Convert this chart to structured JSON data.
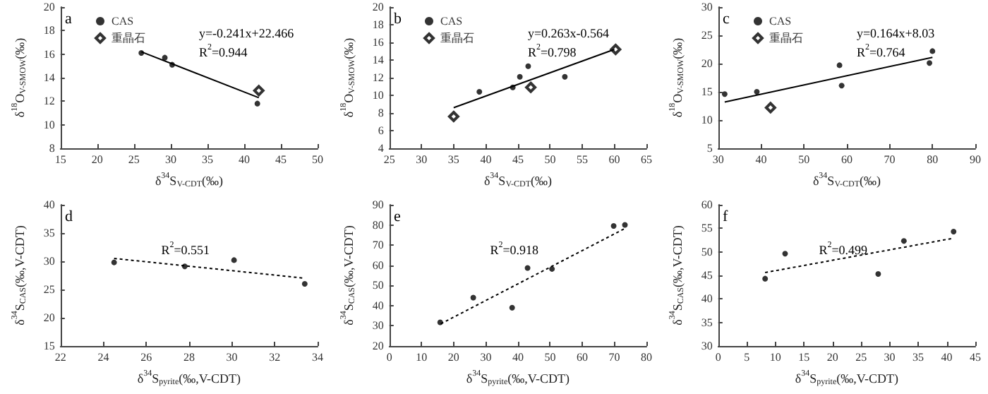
{
  "chart_data": [
    {
      "type": "scatter",
      "xlabel": "δ$^{34}$S$_{V-CDT}$(‰)",
      "ylabel": "δ$^{18}$O$_{V-SMOW}$(‰)",
      "xlim": [
        15,
        50
      ],
      "xticks": [
        15,
        20,
        25,
        30,
        35,
        40,
        45,
        50
      ],
      "ylim": [
        8,
        20
      ],
      "yticks": [
        8,
        10,
        12,
        14,
        16,
        18,
        20
      ],
      "grid": false,
      "legend": "top left",
      "annotations": [
        "a",
        "y=-0.241x+22.466",
        "R$^{2}$=0.944"
      ],
      "series": [
        {
          "name": "CAS",
          "type": "scatter",
          "marker": "circle",
          "color": "#000000",
          "x": [
            26,
            29.2,
            30.2,
            41.8
          ],
          "values": [
            16.1,
            15.7,
            15.1,
            11.8
          ]
        },
        {
          "name": "重晶石",
          "type": "scatter",
          "marker": "diamond",
          "color": "#000000",
          "x": [
            42
          ],
          "values": [
            12.9
          ]
        },
        {
          "type": "line",
          "marker": "none",
          "line_style": "solid",
          "color": "#000000",
          "x": [
            26,
            42
          ],
          "values": [
            16.2,
            12.3
          ]
        }
      ]
    },
    {
      "type": "scatter",
      "xlabel": "δ$^{34}$S$_{V-CDT}$(‰)",
      "ylabel": "δ$^{18}$O$_{V-SMOW}$(‰)",
      "xlim": [
        25,
        65
      ],
      "xticks": [
        25,
        30,
        35,
        40,
        45,
        50,
        55,
        60,
        65
      ],
      "ylim": [
        4,
        20
      ],
      "yticks": [
        4,
        6,
        8,
        10,
        12,
        14,
        16,
        18,
        20
      ],
      "grid": false,
      "legend": "top left",
      "annotations": [
        "b",
        "y=0.263x-0.564",
        "R$^{2}$=0.798"
      ],
      "series": [
        {
          "name": "CAS",
          "type": "scatter",
          "marker": "circle",
          "color": "#000000",
          "x": [
            39,
            44.2,
            45.3,
            46.6,
            52.3
          ],
          "values": [
            10.4,
            10.9,
            12.1,
            13.3,
            12.1
          ]
        },
        {
          "name": "重晶石",
          "type": "scatter",
          "marker": "diamond",
          "color": "#000000",
          "x": [
            35,
            47,
            60.2
          ],
          "values": [
            7.6,
            10.9,
            15.2
          ]
        },
        {
          "type": "line",
          "marker": "none",
          "line_style": "solid",
          "color": "#000000",
          "x": [
            35,
            60
          ],
          "values": [
            8.6,
            15.2
          ]
        }
      ]
    },
    {
      "type": "scatter",
      "xlabel": "δ$^{34}$S$_{V-CDT}$(‰)",
      "ylabel": "δ$^{18}$O$_{V-SMOW}$(‰)",
      "xlim": [
        30,
        90
      ],
      "xticks": [
        30,
        40,
        50,
        60,
        70,
        80,
        90
      ],
      "ylim": [
        5,
        30
      ],
      "yticks": [
        5,
        10,
        15,
        20,
        25,
        30
      ],
      "grid": false,
      "legend": "top left",
      "annotations": [
        "c",
        "y=0.164x+8.03",
        "R$^{2}$=0.764"
      ],
      "series": [
        {
          "name": "CAS",
          "type": "scatter",
          "marker": "circle",
          "color": "#000000",
          "x": [
            31.5,
            39,
            58.3,
            58.8,
            79.3,
            80
          ],
          "values": [
            14.6,
            15,
            19.7,
            16.1,
            20.1,
            22.2
          ]
        },
        {
          "name": "重晶石",
          "type": "scatter",
          "marker": "diamond",
          "color": "#000000",
          "x": [
            42.2
          ],
          "values": [
            12.2
          ]
        },
        {
          "type": "line",
          "marker": "none",
          "line_style": "solid",
          "color": "#000000",
          "x": [
            31.5,
            80
          ],
          "values": [
            13.2,
            21.1
          ]
        }
      ]
    },
    {
      "type": "scatter",
      "xlabel": "δ$^{34}$S$_{pyrite}$(‰,V-CDT)",
      "ylabel": "δ$^{34}$S$_{CAS}$(‰,V-CDT)",
      "xlim": [
        22,
        34
      ],
      "xticks": [
        22,
        24,
        26,
        28,
        30,
        32,
        34
      ],
      "ylim": [
        15,
        40
      ],
      "yticks": [
        15,
        20,
        25,
        30,
        35,
        40
      ],
      "grid": false,
      "annotations": [
        "d",
        "R$^{2}$=0.551"
      ],
      "series": [
        {
          "type": "scatter",
          "marker": "circle",
          "color": "#000000",
          "x": [
            24.5,
            27.8,
            30.1,
            33.4
          ],
          "values": [
            29.8,
            29.1,
            30.2,
            26
          ]
        },
        {
          "type": "line",
          "marker": "none",
          "line_style": "dotted",
          "color": "#000000",
          "x": [
            24.5,
            33.4
          ],
          "values": [
            30.5,
            27
          ]
        }
      ]
    },
    {
      "type": "scatter",
      "xlabel": "δ$^{34}$S$_{pyrite}$(‰,V-CDT)",
      "ylabel": "δ$^{34}$S$_{CAS}$(‰,V-CDT)",
      "xlim": [
        0,
        80
      ],
      "xticks": [
        0,
        10,
        20,
        30,
        40,
        50,
        60,
        70,
        80
      ],
      "ylim": [
        20,
        90
      ],
      "yticks": [
        20,
        30,
        40,
        50,
        60,
        70,
        80,
        90
      ],
      "grid": false,
      "annotations": [
        "e",
        "R$^{2}$=0.918"
      ],
      "series": [
        {
          "type": "scatter",
          "marker": "circle",
          "color": "#000000",
          "x": [
            15.8,
            26.1,
            38.2,
            43,
            50.6,
            69.8,
            73.3
          ],
          "values": [
            31.7,
            44,
            39,
            58.7,
            58.2,
            79.5,
            80
          ]
        },
        {
          "type": "line",
          "marker": "none",
          "line_style": "dotted",
          "color": "#000000",
          "x": [
            16,
            73
          ],
          "values": [
            31,
            78
          ]
        }
      ]
    },
    {
      "type": "scatter",
      "xlabel": "δ$^{34}$S$_{pyrite}$(‰,V-CDT)",
      "ylabel": "δ$^{34}$S$_{CAS}$(‰,V-CDT)",
      "xlim": [
        0,
        45
      ],
      "xticks": [
        0,
        5,
        10,
        15,
        20,
        25,
        30,
        35,
        40,
        45
      ],
      "ylim": [
        30,
        60
      ],
      "yticks": [
        30,
        35,
        40,
        45,
        50,
        55,
        60
      ],
      "grid": false,
      "annotations": [
        "f",
        "R$^{2}$=0.499"
      ],
      "series": [
        {
          "type": "scatter",
          "marker": "circle",
          "color": "#000000",
          "x": [
            8.2,
            11.7,
            28,
            32.5,
            41.2
          ],
          "values": [
            44.3,
            49.6,
            45.3,
            52.3,
            54.3
          ]
        },
        {
          "type": "line",
          "marker": "none",
          "line_style": "dotted",
          "color": "#000000",
          "x": [
            8.2,
            41.2
          ],
          "values": [
            45.6,
            52.9
          ]
        }
      ]
    }
  ]
}
